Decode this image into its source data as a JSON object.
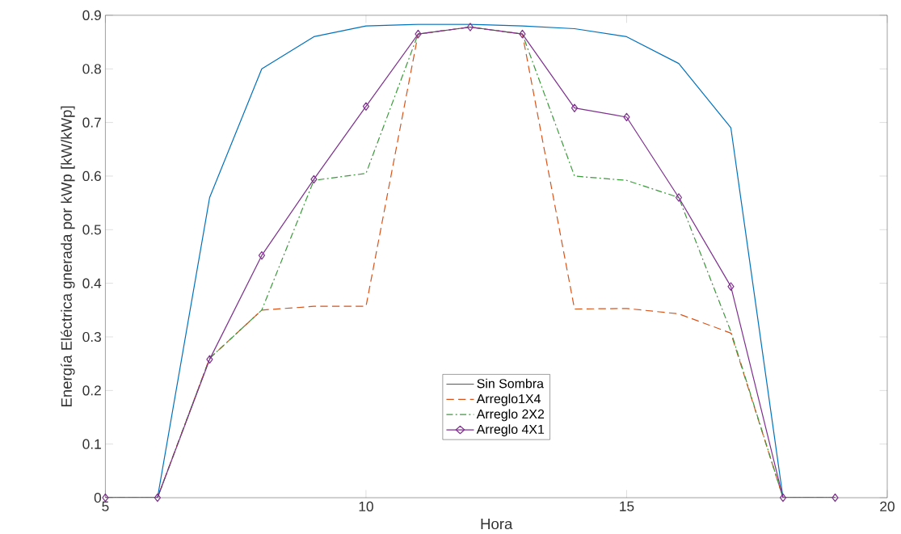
{
  "chart_data": {
    "type": "line",
    "xlabel": "Hora",
    "ylabel": "Energía Eléctrica gnerada por kWp [kW/kWp]",
    "x": [
      5,
      6,
      7,
      8,
      9,
      10,
      11,
      12,
      13,
      14,
      15,
      16,
      17,
      18,
      19
    ],
    "xlim": [
      5,
      20
    ],
    "xticks": [
      5,
      10,
      15,
      20
    ],
    "ylim": [
      0,
      0.9
    ],
    "yticks": [
      0,
      0.1,
      0.2,
      0.3,
      0.4,
      0.5,
      0.6,
      0.7,
      0.8,
      0.9
    ],
    "grid": false,
    "legend": "bottom",
    "series": [
      {
        "name": "Sin Sombra",
        "color": "#0072bd",
        "line_style": "solid",
        "marker": "none",
        "values": [
          0,
          0,
          0.56,
          0.8,
          0.86,
          0.88,
          0.883,
          0.883,
          0.88,
          0.875,
          0.86,
          0.81,
          0.69,
          0,
          0
        ]
      },
      {
        "name": "Arreglo1X4",
        "color": "#d95319",
        "line_style": "dashed",
        "marker": "none",
        "values": [
          0,
          0,
          0.26,
          0.35,
          0.357,
          0.357,
          0.865,
          0.878,
          0.865,
          0.352,
          0.353,
          0.343,
          0.307,
          0,
          0
        ]
      },
      {
        "name": "Arreglo 2X2",
        "color": "#3a9a3a",
        "line_style": "dashdot",
        "marker": "none",
        "values": [
          0,
          0,
          0.26,
          0.35,
          0.592,
          0.605,
          0.865,
          0.878,
          0.865,
          0.6,
          0.592,
          0.56,
          0.31,
          0,
          0
        ]
      },
      {
        "name": "Arreglo 4X1",
        "color": "#7e2f8e",
        "line_style": "solid",
        "marker": "diamond",
        "values": [
          0,
          0,
          0.258,
          0.452,
          0.594,
          0.73,
          0.865,
          0.878,
          0.865,
          0.727,
          0.71,
          0.56,
          0.394,
          0,
          0
        ]
      }
    ]
  }
}
